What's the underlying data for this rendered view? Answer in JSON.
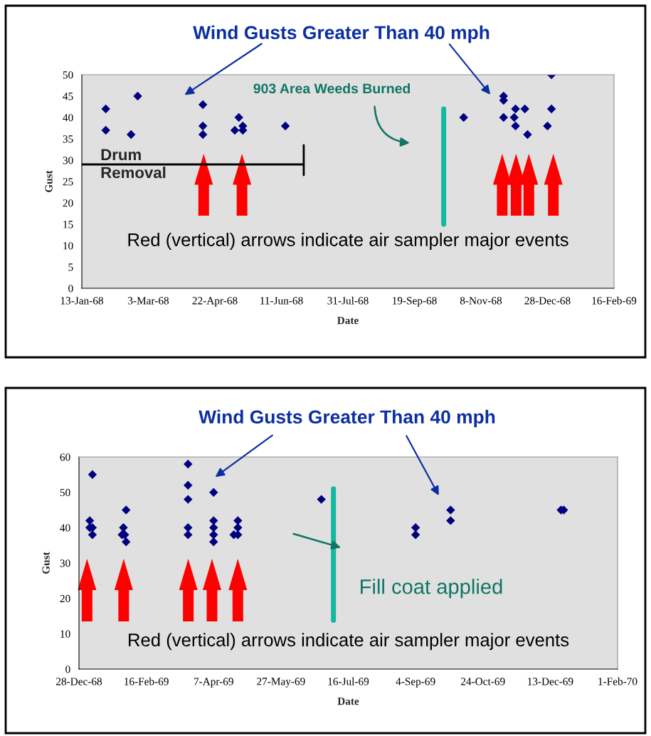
{
  "chart_data": [
    {
      "type": "scatter",
      "title": "Wind Gusts Greater Than 40 mph",
      "xlabel": "Date",
      "ylabel": "Gust",
      "series": [
        {
          "color": "#000080",
          "marker": "diamond",
          "x": [
            "1968-01-31",
            "1968-01-31",
            "1968-02-19",
            "1968-02-24",
            "1968-04-13",
            "1968-04-13",
            "1968-04-13",
            "1968-05-07",
            "1968-05-10",
            "1968-05-13",
            "1968-05-13",
            "1968-06-14",
            "1968-10-26",
            "1968-11-25",
            "1968-11-25",
            "1968-11-25",
            "1968-12-04",
            "1968-12-03",
            "1968-12-04",
            "1968-12-11",
            "1968-12-13",
            "1968-12-31",
            "1968-12-31",
            "1968-12-28"
          ],
          "values": [
            42,
            37,
            36,
            45,
            43,
            38,
            36,
            37,
            40,
            38,
            37,
            38,
            40,
            45,
            44,
            40,
            42,
            40,
            38,
            42,
            36,
            50,
            42,
            38
          ]
        }
      ],
      "xlim": [
        "1968-01-13",
        "1969-02-16"
      ],
      "xticks": [
        {
          "value": "1968-01-13",
          "label": "13-Jan-68"
        },
        {
          "value": "1968-03-03",
          "label": "3-Mar-68"
        },
        {
          "value": "1968-04-22",
          "label": "22-Apr-68"
        },
        {
          "value": "1968-06-11",
          "label": "11-Jun-68"
        },
        {
          "value": "1968-07-31",
          "label": "31-Jul-68"
        },
        {
          "value": "1968-09-19",
          "label": "19-Sep-68"
        },
        {
          "value": "1968-11-08",
          "label": "8-Nov-68"
        },
        {
          "value": "1968-12-28",
          "label": "28-Dec-68"
        },
        {
          "value": "1969-02-16",
          "label": "16-Feb-69"
        }
      ],
      "ylim": [
        0,
        50
      ],
      "yticks": [
        0,
        5,
        10,
        15,
        20,
        25,
        30,
        35,
        40,
        45,
        50
      ],
      "grid": false,
      "legend": false,
      "ref_lines": [
        {
          "axis": "x",
          "value": "1968-10-11",
          "label": "903 Area Weeds Burned",
          "color": "#14b8a0"
        }
      ],
      "annotations": [
        "Drum Removal",
        "Red (vertical) arrows indicate air sampler major events"
      ]
    },
    {
      "type": "scatter",
      "title": "Wind Gusts Greater Than 40 mph",
      "xlabel": "Date",
      "ylabel": "Gust",
      "series": [
        {
          "color": "#000080",
          "marker": "diamond",
          "x": [
            "1969-01-07",
            "1969-01-05",
            "1969-01-05",
            "1969-01-07",
            "1969-01-07",
            "1969-01-29",
            "1969-01-31",
            "1969-01-30",
            "1969-02-01",
            "1969-02-01",
            "1969-03-19",
            "1969-03-19",
            "1969-03-19",
            "1969-03-19",
            "1969-03-19",
            "1969-04-07",
            "1969-04-07",
            "1969-04-07",
            "1969-04-07",
            "1969-04-07",
            "1969-04-22",
            "1969-04-25",
            "1969-04-25",
            "1969-04-25",
            "1969-06-26",
            "1969-09-04",
            "1969-09-04",
            "1969-09-30",
            "1969-09-30",
            "1969-12-21",
            "1969-12-23"
          ],
          "values": [
            55,
            42,
            40,
            40,
            38,
            38,
            38,
            40,
            45,
            36,
            58,
            52,
            48,
            40,
            38,
            50,
            42,
            40,
            38,
            36,
            38,
            42,
            40,
            38,
            48,
            40,
            38,
            45,
            42,
            45,
            45
          ]
        }
      ],
      "xlim": [
        "1968-12-28",
        "1970-02-01"
      ],
      "xticks": [
        {
          "value": "1968-12-28",
          "label": "28-Dec-68"
        },
        {
          "value": "1969-02-16",
          "label": "16-Feb-69"
        },
        {
          "value": "1969-04-07",
          "label": "7-Apr-69"
        },
        {
          "value": "1969-05-27",
          "label": "27-May-69"
        },
        {
          "value": "1969-07-16",
          "label": "16-Jul-69"
        },
        {
          "value": "1969-09-04",
          "label": "4-Sep-69"
        },
        {
          "value": "1969-10-24",
          "label": "24-Oct-69"
        },
        {
          "value": "1969-12-13",
          "label": "13-Dec-69"
        },
        {
          "value": "1970-02-01",
          "label": "1-Feb-70"
        }
      ],
      "ylim": [
        0,
        60
      ],
      "yticks": [
        0,
        10,
        20,
        30,
        40,
        50,
        60
      ],
      "grid": false,
      "legend": false,
      "ref_lines": [
        {
          "axis": "x",
          "value": "1969-07-05",
          "label": "Fill coat applied",
          "color": "#14b8a0"
        }
      ],
      "annotations": [
        "Red (vertical) arrows indicate air sampler major events"
      ]
    }
  ]
}
